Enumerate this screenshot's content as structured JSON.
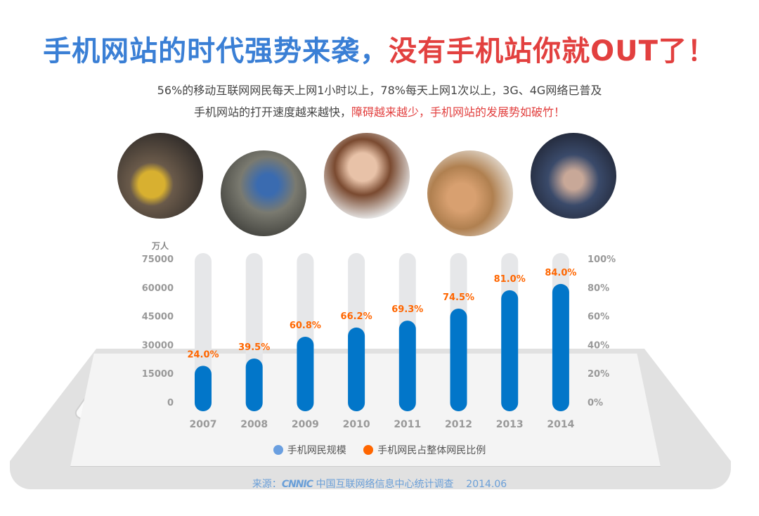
{
  "title": {
    "part1": "手机网站的时代强势来袭，",
    "part2": "没有手机站你就OUT了！"
  },
  "subtitle": {
    "line1": "56%的移动互联网网民每天上网1小时以上，78%每天上网1次以上，3G、4G网络已普及",
    "line2a": "手机网站的打开速度越来越快，",
    "line2b": "障碍越来越少，手机网站的发展势如破竹！"
  },
  "colors": {
    "bar": "#0276c9",
    "track": "#e6e7e9",
    "pct": "#ff6600",
    "legend_bar": "#6a9fe0",
    "title_blue": "#3a7fd5",
    "title_red": "#e2403f"
  },
  "chart_data": {
    "type": "bar",
    "ylabel": "万人",
    "categories": [
      "2007",
      "2008",
      "2009",
      "2010",
      "2011",
      "2012",
      "2013",
      "2014"
    ],
    "series": [
      {
        "name": "手机网民规模",
        "axis": "left",
        "values": [
          19000,
          22800,
          34200,
          39000,
          42600,
          48900,
          58500,
          61800
        ]
      },
      {
        "name": "手机网民占整体网民比例",
        "axis": "right",
        "values": [
          24.0,
          39.5,
          60.8,
          66.2,
          69.3,
          74.5,
          81.0,
          84.0
        ],
        "labels": [
          "24.0%",
          "39.5%",
          "60.8%",
          "66.2%",
          "69.3%",
          "74.5%",
          "81.0%",
          "84.0%"
        ]
      }
    ],
    "ylim": [
      0,
      75000
    ],
    "yticks": [
      "0",
      "15000",
      "30000",
      "45000",
      "60000",
      "75000"
    ],
    "y2lim": [
      0,
      100
    ],
    "y2ticks": [
      "0%",
      "20%",
      "40%",
      "60%",
      "80%",
      "100%"
    ],
    "legend": "bottom"
  },
  "footer": {
    "prefix": "来源：",
    "logo": "CNNIC",
    "org": "中国互联网络信息中心统计调查",
    "date": "2014.06"
  }
}
